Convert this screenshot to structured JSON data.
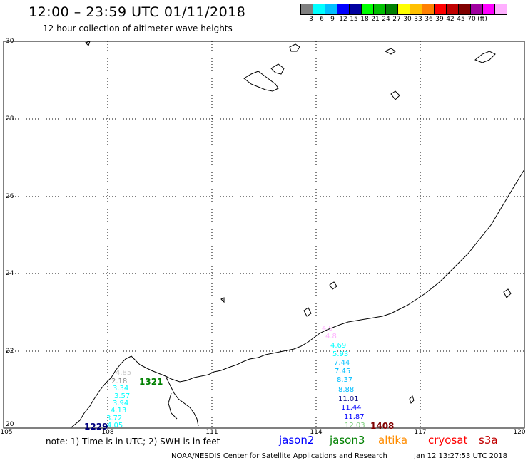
{
  "header": {
    "title": "12:00 – 23:59 UTC 01/11/2018",
    "subtitle": "12 hour collection of altimeter wave heights"
  },
  "color_scale": {
    "colors": [
      "#808080",
      "#00ffff",
      "#00bfff",
      "#0000ff",
      "#0000a0",
      "#00ff00",
      "#00c000",
      "#008000",
      "#ffff00",
      "#ffc000",
      "#ff8000",
      "#ff0000",
      "#c00000",
      "#800000",
      "#a000a0",
      "#ff00ff",
      "#ffb0ff"
    ],
    "labels": [
      "3",
      "6",
      "9",
      "12",
      "15",
      "18",
      "21",
      "24",
      "27",
      "30",
      "33",
      "36",
      "39",
      "42",
      "45",
      "70",
      "(ft)"
    ]
  },
  "axes": {
    "lat_labels": [
      "30",
      "28",
      "26",
      "24",
      "22",
      "20"
    ],
    "lon_labels": [
      "105",
      "108",
      "111",
      "114",
      "117",
      "120"
    ]
  },
  "wave_heights": [
    {
      "v": "4.85",
      "c": "#c8c8c8",
      "b": false
    },
    {
      "v": "2.18",
      "c": "#808080",
      "b": false
    },
    {
      "v": "1321",
      "c": "#008000",
      "b": true
    },
    {
      "v": "3.34",
      "c": "#00ffff",
      "b": false
    },
    {
      "v": "3.57",
      "c": "#00ffff",
      "b": false
    },
    {
      "v": "3.94",
      "c": "#00ffff",
      "b": false
    },
    {
      "v": "4.13",
      "c": "#00ffff",
      "b": false
    },
    {
      "v": "3.72",
      "c": "#00ffff",
      "b": false
    },
    {
      "v": "4.05",
      "c": "#00ffff",
      "b": false
    },
    {
      "v": "1229",
      "c": "#000080",
      "b": true
    },
    {
      "v": "4.9",
      "c": "#ffb0ff",
      "b": false
    },
    {
      "v": "4.8",
      "c": "#ffb0ff",
      "b": false
    },
    {
      "v": "4.69",
      "c": "#00ffff",
      "b": false
    },
    {
      "v": "5.93",
      "c": "#00ffff",
      "b": false
    },
    {
      "v": "7.44",
      "c": "#00bfff",
      "b": false
    },
    {
      "v": "7.45",
      "c": "#00bfff",
      "b": false
    },
    {
      "v": "8.37",
      "c": "#00bfff",
      "b": false
    },
    {
      "v": "8.88",
      "c": "#00bfff",
      "b": false
    },
    {
      "v": "11.01",
      "c": "#000080",
      "b": false
    },
    {
      "v": "11.44",
      "c": "#0000ff",
      "b": false
    },
    {
      "v": "11.87",
      "c": "#0000ff",
      "b": false
    },
    {
      "v": "12.03",
      "c": "#7ccd7c",
      "b": false
    },
    {
      "v": "1408",
      "c": "#800000",
      "b": true
    }
  ],
  "footer": {
    "note": "note: 1) Time is in UTC; 2) SWH is in feet",
    "satellites": [
      {
        "name": "jason2",
        "color": "#0000ff"
      },
      {
        "name": "jason3",
        "color": "#008000"
      },
      {
        "name": "altika",
        "color": "#ff8c00"
      },
      {
        "name": "cryosat",
        "color": "#ff0000"
      },
      {
        "name": "s3a",
        "color": "#c00000"
      }
    ],
    "credit": "NOAA/NESDIS Center for Satellite Applications and Research",
    "timestamp": "Jan 12 13:27:53 UTC 2018"
  }
}
